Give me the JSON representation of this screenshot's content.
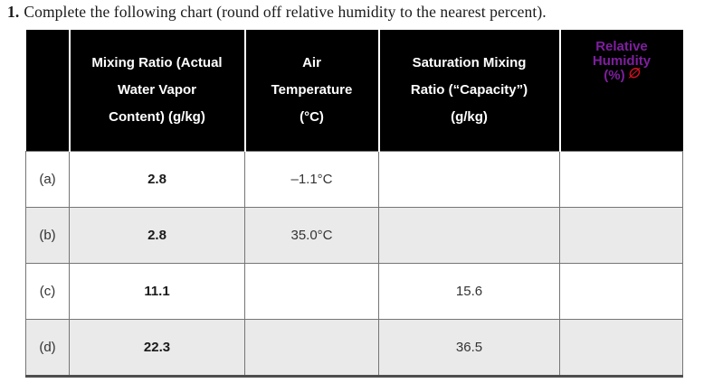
{
  "title": {
    "number": "1.",
    "text": "Complete the following chart (round off relative humidity to the nearest percent)."
  },
  "table": {
    "columns": [
      {
        "id": "row-label",
        "lines": []
      },
      {
        "id": "mixing-ratio",
        "lines": [
          "Mixing Ratio (Actual",
          "Water Vapor",
          "Content) (g/kg)"
        ]
      },
      {
        "id": "air-temperature",
        "lines": [
          "Air",
          "Temperature",
          "(°C)"
        ]
      },
      {
        "id": "saturation-mixing-ratio",
        "lines": [
          "Saturation Mixing",
          "Ratio (“Capacity”)",
          "(g/kg)"
        ]
      },
      {
        "id": "relative-humidity",
        "lines": [
          "Relative",
          "Humidity",
          "(%)"
        ],
        "annotation": {
          "icon": "comment-annotation-icon",
          "glyph": "∅"
        }
      }
    ],
    "rows": [
      {
        "label": "(a)",
        "mixing_ratio": "2.8",
        "air_temperature": "–1.1°C",
        "saturation_mixing_ratio": "",
        "relative_humidity": ""
      },
      {
        "label": "(b)",
        "mixing_ratio": "2.8",
        "air_temperature": "35.0°C",
        "saturation_mixing_ratio": "",
        "relative_humidity": ""
      },
      {
        "label": "(c)",
        "mixing_ratio": "11.1",
        "air_temperature": "",
        "saturation_mixing_ratio": "15.6",
        "relative_humidity": ""
      },
      {
        "label": "(d)",
        "mixing_ratio": "22.3",
        "air_temperature": "",
        "saturation_mixing_ratio": "36.5",
        "relative_humidity": ""
      }
    ]
  },
  "colors": {
    "header_bg": "#000000",
    "header_text": "#ffffff",
    "header_divider": "#ffffff",
    "relative_humidity_text": "#7E1F9E",
    "annotation_icon": "#CC1122",
    "row_alt_bg": "#EAEAEA",
    "grid_line": "#757575",
    "bottom_border": "#4D4D4D",
    "title_text": "#1a1a1a",
    "body_text": "#333333",
    "bold_value_text": "#1a1a1a"
  }
}
